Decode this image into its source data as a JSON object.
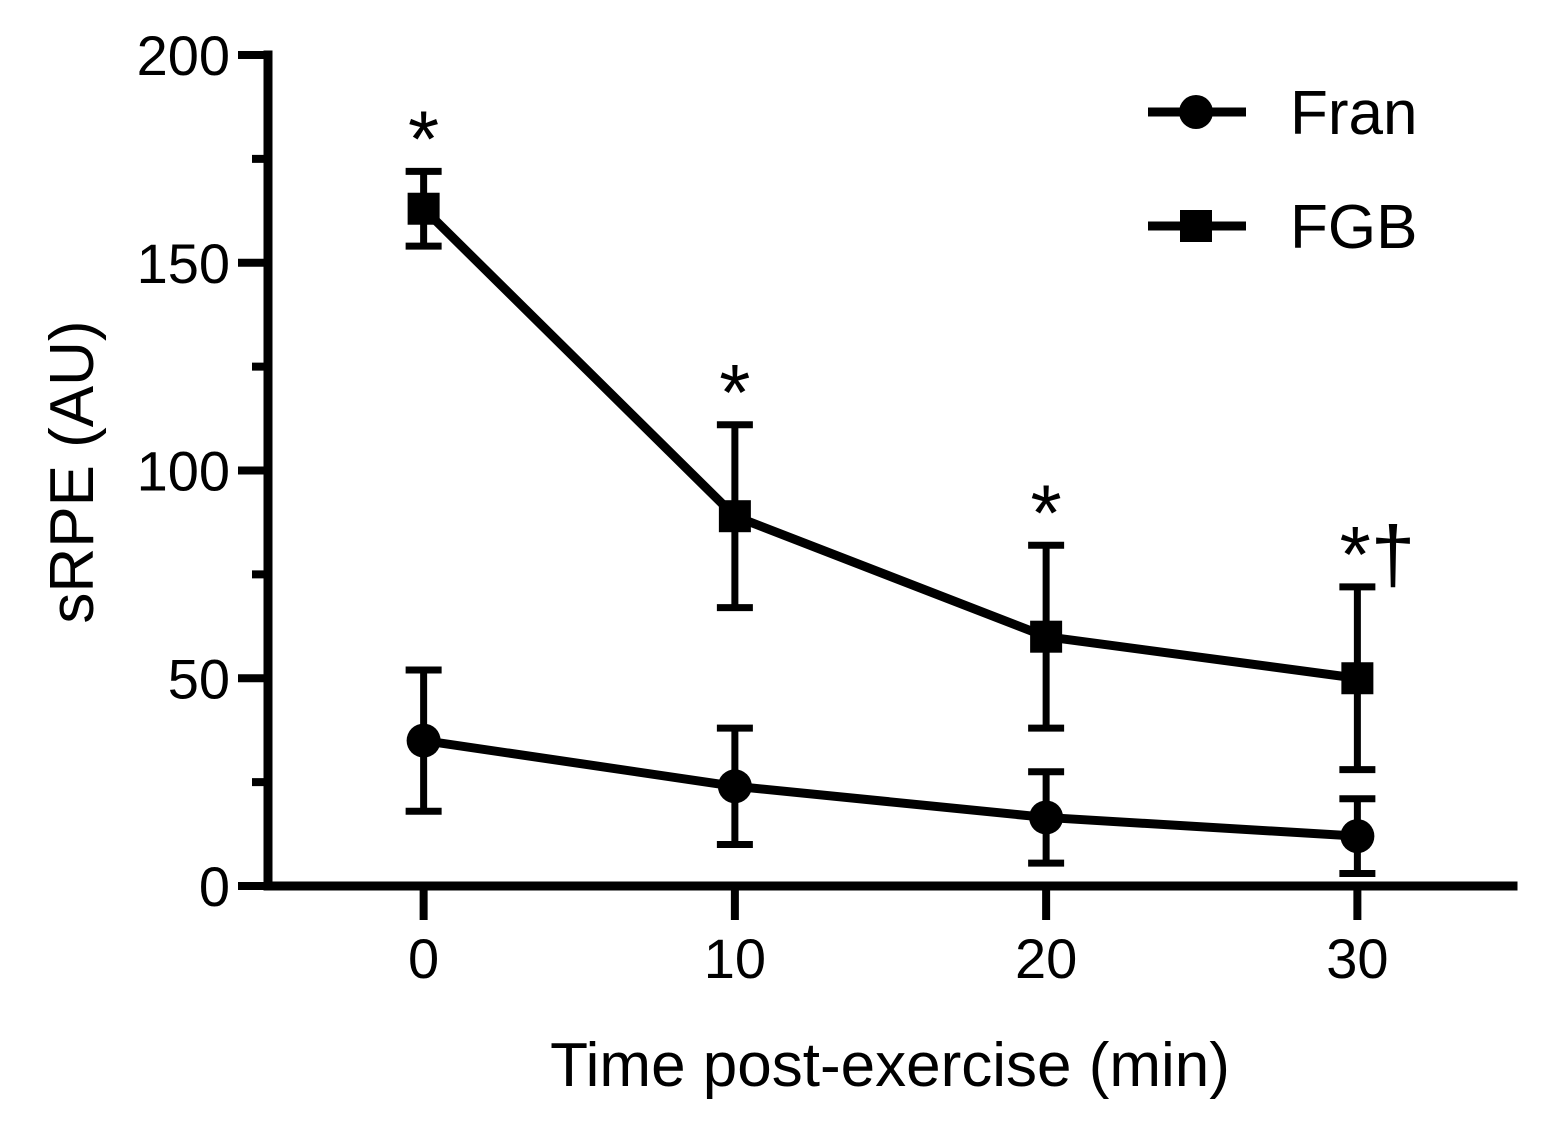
{
  "chart_data": {
    "type": "line",
    "title": "",
    "xlabel": "Time post-exercise (min)",
    "ylabel": "sRPE (AU)",
    "x": [
      0,
      10,
      20,
      30
    ],
    "x_ticks": [
      "0",
      "10",
      "20",
      "30"
    ],
    "xlim": [
      -5,
      35
    ],
    "ylim": [
      0,
      200
    ],
    "y_ticks": [
      "0",
      "50",
      "100",
      "150",
      "200"
    ],
    "y_tick_values": [
      0,
      50,
      100,
      150,
      200
    ],
    "y_minor_ticks": [
      25,
      75,
      125,
      175
    ],
    "grid": false,
    "legend": "top-right",
    "series": [
      {
        "name": "Fran",
        "marker": "circle",
        "values": [
          35,
          24,
          16.5,
          12
        ],
        "error": [
          17,
          14,
          11,
          9
        ]
      },
      {
        "name": "FGB",
        "marker": "square",
        "values": [
          163,
          89,
          60,
          50
        ],
        "error": [
          9,
          22,
          22,
          22
        ]
      }
    ],
    "annotations": [
      {
        "x": 0,
        "text": "*"
      },
      {
        "x": 10,
        "text": "*"
      },
      {
        "x": 20,
        "text": "*"
      },
      {
        "x": 30,
        "text": "*†"
      }
    ]
  }
}
